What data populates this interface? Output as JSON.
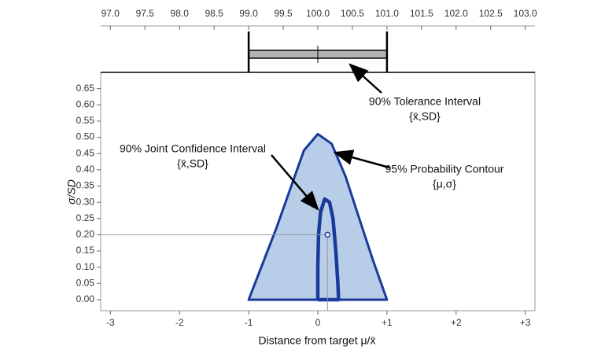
{
  "chart_data": [
    {
      "type": "interval",
      "xlim": [
        96.86,
        103.14
      ],
      "xticks": [
        {
          "value": 97.0,
          "label": "97.0"
        },
        {
          "value": 97.5,
          "label": "97.5"
        },
        {
          "value": 98.0,
          "label": "98.0"
        },
        {
          "value": 98.5,
          "label": "98.5"
        },
        {
          "value": 99.0,
          "label": "99.0"
        },
        {
          "value": 99.5,
          "label": "99.5"
        },
        {
          "value": 100.0,
          "label": "100.0"
        },
        {
          "value": 100.5,
          "label": "100.5"
        },
        {
          "value": 101.0,
          "label": "101.0"
        },
        {
          "value": 101.5,
          "label": "101.5"
        },
        {
          "value": 102.0,
          "label": "102.0"
        },
        {
          "value": 102.5,
          "label": "102.5"
        },
        {
          "value": 103.0,
          "label": "103.0"
        }
      ],
      "lower": 99.0,
      "center": 100.0,
      "upper": 101.0,
      "color": "#b3b3b3"
    },
    {
      "type": "contour",
      "xlabel": "Distance from target μ/x̄",
      "ylabel": "σ/SD",
      "xlim": [
        -3.14,
        3.14
      ],
      "ylim": [
        -0.034,
        0.7
      ],
      "xticks": [
        -3,
        -2,
        -1,
        0,
        {
          "value": 1,
          "label": "+1"
        },
        {
          "value": 2,
          "label": "+2"
        },
        {
          "value": 3,
          "label": "+3"
        }
      ],
      "yticks": [
        {
          "value": 0,
          "label": "0.00"
        },
        0.05,
        {
          "value": 0.1,
          "label": "0.10"
        },
        0.15,
        {
          "value": 0.2,
          "label": "0.20"
        },
        0.25,
        {
          "value": 0.3,
          "label": "0.30"
        },
        0.35,
        {
          "value": 0.4,
          "label": "0.40"
        },
        0.45,
        {
          "value": 0.5,
          "label": "0.50"
        },
        0.55,
        {
          "value": 0.6,
          "label": "0.60"
        },
        0.65
      ],
      "series": [
        {
          "name": "95% Probability Contour",
          "color": "#1a3a9a",
          "fill": "#b8cde8",
          "x": [
            -1,
            -0.8,
            -0.6,
            -0.4,
            -0.2,
            0,
            0.2,
            0.4,
            0.6,
            0.8,
            1
          ],
          "y": [
            0,
            0.11,
            0.22,
            0.34,
            0.46,
            0.51,
            0.48,
            0.38,
            0.25,
            0.12,
            0
          ]
        },
        {
          "name": "90% Joint Confidence Interval",
          "color": "#1a3a9a",
          "x": [
            0.0,
            0.0,
            0.01,
            0.04,
            0.1,
            0.17,
            0.22,
            0.26,
            0.29,
            0.3,
            0.0
          ],
          "y": [
            0.0,
            0.1,
            0.2,
            0.27,
            0.31,
            0.3,
            0.25,
            0.15,
            0.05,
            0.0,
            0.0
          ]
        }
      ],
      "point": {
        "x": 0.14,
        "y": 0.2
      },
      "annotations": [
        {
          "text": "90% Tolerance Interval",
          "subtext": "{x̄,SD}"
        },
        {
          "text": "90% Joint Confidence Interval",
          "subtext": "{x̄,SD}"
        },
        {
          "text": "95% Probability Contour",
          "subtext": "{μ,σ}"
        }
      ]
    }
  ]
}
